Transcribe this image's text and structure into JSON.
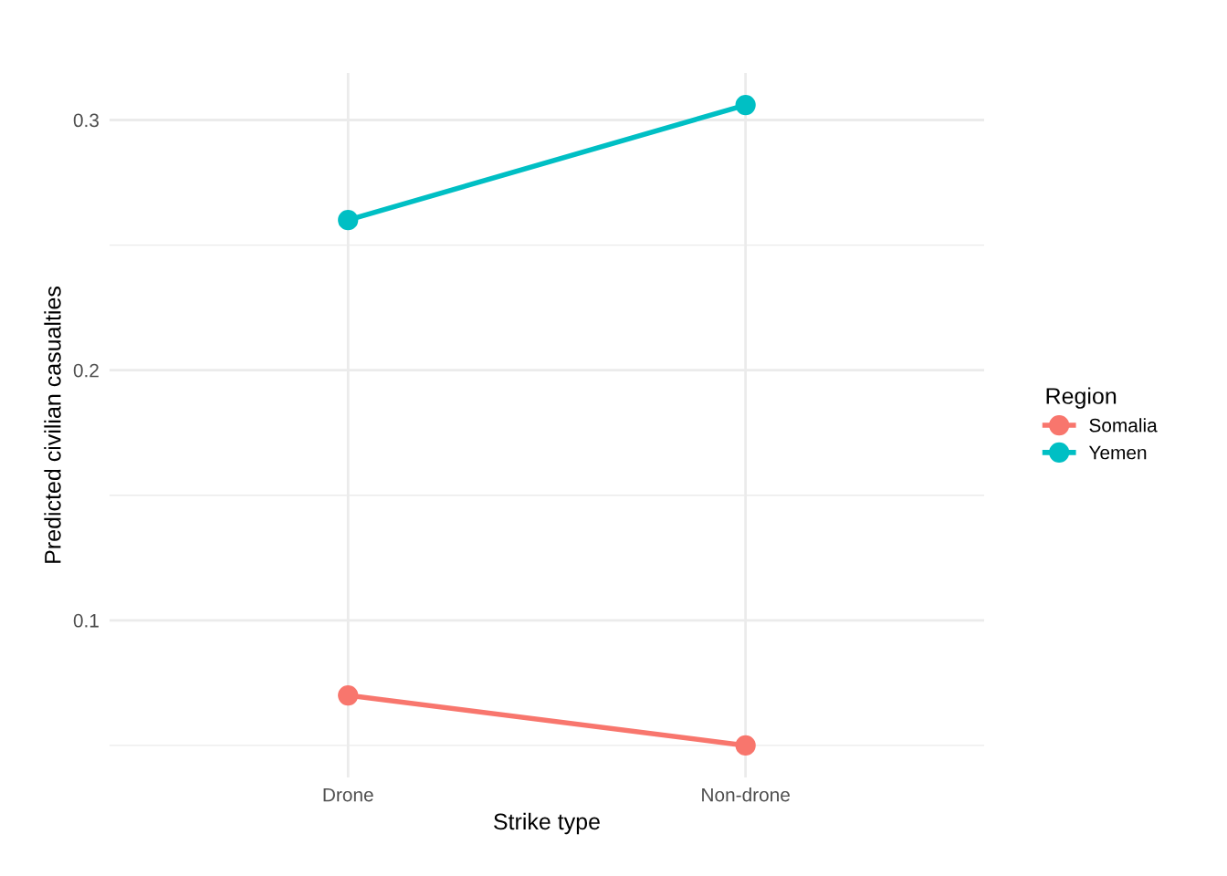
{
  "chart_data": {
    "type": "line",
    "xlabel": "Strike type",
    "ylabel": "Predicted civilian casualties",
    "legend_title": "Region",
    "categories": [
      "Drone",
      "Non-drone"
    ],
    "series": [
      {
        "name": "Somalia",
        "color": "#f8766d",
        "values": [
          0.07,
          0.05
        ]
      },
      {
        "name": "Yemen",
        "color": "#00bfc4",
        "values": [
          0.26,
          0.306
        ]
      }
    ],
    "ylim": [
      0.0372,
      0.3188
    ],
    "yticks": [
      0.1,
      0.2,
      0.3
    ],
    "grid": true,
    "legend": "right",
    "marker": "circle",
    "line_style": "solid"
  }
}
